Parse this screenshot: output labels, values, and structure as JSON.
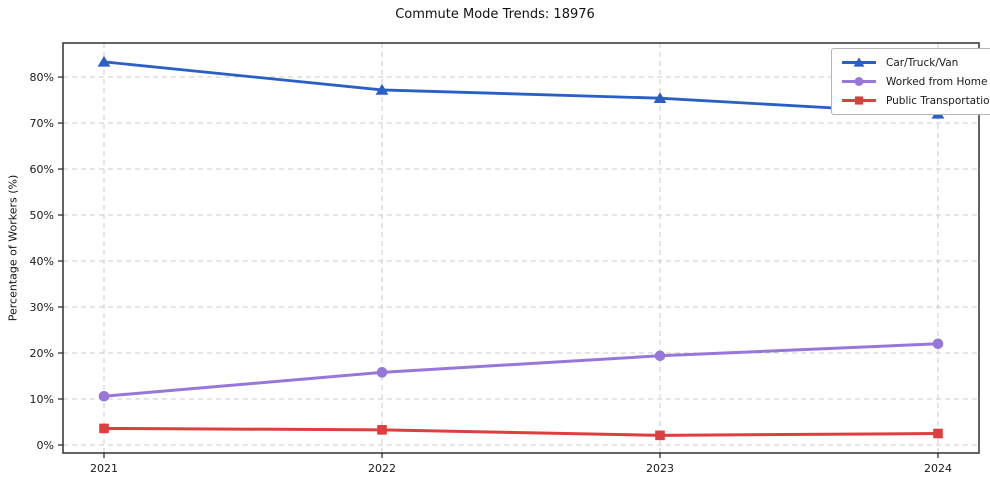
{
  "chart_data": {
    "type": "line",
    "title": "Commute Mode Trends: 18976",
    "xlabel": "",
    "ylabel": "Percentage of Workers (%)",
    "categories": [
      "2021",
      "2022",
      "2023",
      "2024"
    ],
    "series": [
      {
        "name": "Car/Truck/Van",
        "color": "#2a5fc5",
        "marker": "triangle",
        "line_width": 2.8,
        "values": [
          83.3,
          77.2,
          75.4,
          72.0
        ]
      },
      {
        "name": "Worked from Home",
        "color": "#9777d9",
        "marker": "circle",
        "line_width": 3.0,
        "values": [
          10.6,
          15.8,
          19.4,
          22.0
        ]
      },
      {
        "name": "Public Transportation",
        "color": "#dd3f3f",
        "marker": "square",
        "line_width": 3.0,
        "values": [
          3.6,
          3.3,
          2.1,
          2.5
        ]
      }
    ],
    "yticks": [
      0,
      10,
      20,
      30,
      40,
      50,
      60,
      70,
      80
    ],
    "ytick_labels": [
      "0%",
      "10%",
      "20%",
      "30%",
      "40%",
      "50%",
      "60%",
      "70%",
      "80%"
    ],
    "ylim": [
      -1.74,
      87.4
    ],
    "grid": "dashed-both-axes",
    "legend_position": "top-right",
    "colors": {
      "grid": "#cbcbcb",
      "axis_border": "#222222",
      "background": "#ffffff",
      "text": "#1a1a1a"
    }
  }
}
